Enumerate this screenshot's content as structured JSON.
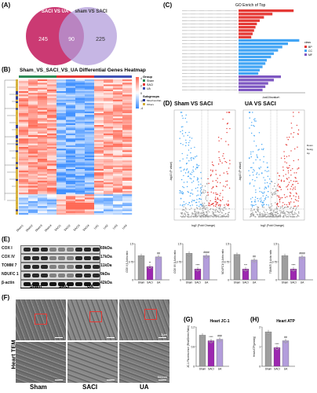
{
  "panels": {
    "A": "(A)",
    "B": "(B)",
    "C": "(C)",
    "D": "(D)",
    "E": "(E)",
    "F": "(F)",
    "G": "(G)",
    "H": "(H)"
  },
  "venn": {
    "left_label": "SACI VS UA",
    "right_label": "sham VS SACI",
    "left_only": "245",
    "overlap": "90",
    "right_only": "225"
  },
  "heatmap": {
    "title": "Sham_VS_SACI_VS_UA Differential Genes Heatmap",
    "legend_group_title": "Group",
    "legend_groups": [
      "Sham",
      "SACI",
      "UA"
    ],
    "legend_subgroup_title": "Subgroups",
    "legend_subgroups": [
      "Mitochondrial-related",
      "Others"
    ],
    "scale_ticks": [
      "4",
      "2",
      "0",
      "-2",
      "-4"
    ],
    "col_labels": [
      "Sham1",
      "Sham2",
      "Sham3",
      "Sham4",
      "SACI1",
      "SACI2",
      "SACI3",
      "SACI4",
      "UA1",
      "UA2",
      "UA3",
      "UA4"
    ]
  },
  "go": {
    "title": "GO Enrich of Top",
    "xlabel": "-log10(pvalue)",
    "legend_title": "class",
    "legend_items": [
      "BP",
      "CC",
      "MF"
    ]
  },
  "volcano": {
    "left_title": "Sham VS SACI",
    "right_title": "UA VS SACI",
    "xlabel": "log2 (Fold Change)",
    "ylabel": "-log10 (P value)",
    "legend_items": [
      "Down",
      "Nosig",
      "Up"
    ]
  },
  "blot": {
    "rows": [
      {
        "name": "COX I",
        "kda": "69kDa"
      },
      {
        "name": "COX IV",
        "kda": "17kDa"
      },
      {
        "name": "TOMM 7",
        "kda": "11kDa"
      },
      {
        "name": "NDUFC 1",
        "kda": "9kDa"
      },
      {
        "name": "β-actin",
        "kda": "42kDa"
      }
    ],
    "groups": [
      "Sham",
      "SACI",
      "UA"
    ]
  },
  "bars_e": [
    {
      "ylabel": "COX I/ β-Actin ratio",
      "ylim": [
        0,
        1.5
      ],
      "values": [
        1.0,
        0.55,
        0.95
      ],
      "sig": [
        "",
        "**",
        "##"
      ],
      "xlabels": [
        "Sham",
        "SACI",
        "UA"
      ]
    },
    {
      "ylabel": "COX IV/ β-Actin ratio",
      "ylim": [
        0,
        1.5
      ],
      "values": [
        1.1,
        0.45,
        1.0
      ],
      "sig": [
        "",
        "****",
        "####"
      ],
      "xlabels": [
        "Sham",
        "SACI",
        "UA"
      ]
    },
    {
      "ylabel": "NDUFC1/ β-Actin ratio",
      "ylim": [
        0,
        1.5
      ],
      "values": [
        1.05,
        0.45,
        0.82
      ],
      "sig": [
        "",
        "***",
        "##"
      ],
      "xlabels": [
        "Sham",
        "SACI",
        "UA"
      ]
    },
    {
      "ylabel": "TOMM7/ β-Actin ratio",
      "ylim": [
        0,
        1.5
      ],
      "values": [
        1.0,
        0.45,
        0.95
      ],
      "sig": [
        "",
        "****",
        "####"
      ],
      "xlabels": [
        "Sham",
        "SACI",
        "UA"
      ]
    }
  ],
  "tem": {
    "side_label": "Heart TEM",
    "groups": [
      "Sham",
      "SACI",
      "UA"
    ],
    "scale_top": "2μm",
    "scale_bottom": "500nm"
  },
  "chart_data": [
    {
      "type": "bar",
      "title": "Heart JC-1",
      "ylabel": "JC-1 Fluorescence (Red/Green Ratio)",
      "categories": [
        "Sham",
        "SACI",
        "UA"
      ],
      "values": [
        0.95,
        0.78,
        0.82
      ],
      "ylim": [
        0,
        1.2
      ],
      "sig": [
        "",
        "****",
        "###"
      ]
    },
    {
      "type": "bar",
      "title": "Heart ATP",
      "ylabel": "Heart ATP(μmol/g)",
      "categories": [
        "Sham",
        "SACI",
        "UA"
      ],
      "values": [
        1.75,
        0.95,
        1.3
      ],
      "ylim": [
        0,
        2.0
      ],
      "sig": [
        "",
        "****",
        "##"
      ]
    }
  ]
}
